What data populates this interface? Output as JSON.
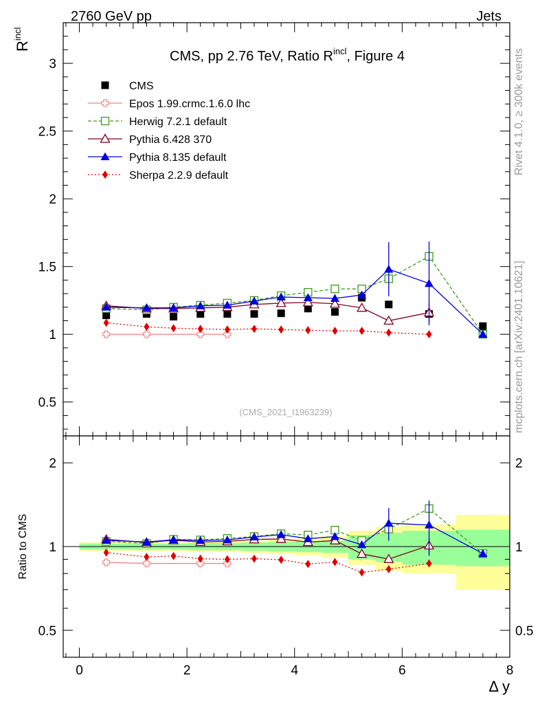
{
  "header": {
    "left": "2760 GeV pp",
    "right": "Jets"
  },
  "side_labels": {
    "rivet": "Rivet 4.1.0, ≥ 300k events",
    "mcplots": "mcplots.cern.ch [arXiv:2401.10621]"
  },
  "chart_data": {
    "type": "scatter",
    "title": "CMS, pp 2.76 TeV, Ratio R",
    "title_sup": "incl",
    "title_suffix": ", Figure 4",
    "ylabel": "R",
    "ylabel_sup": "incl",
    "ratio_ylabel": "Ratio to CMS",
    "xlabel": "Δ y",
    "analysis_id": "(CMS_2021_I1963239)",
    "xlim": [
      -0.3,
      8.0
    ],
    "ylim": [
      0.25,
      3.3
    ],
    "ratio_ylim": [
      0.4,
      2.5
    ],
    "x_ticks": [
      "0",
      "2",
      "4",
      "6",
      "8"
    ],
    "y_ticks": [
      "0.5",
      "1",
      "1.5",
      "2",
      "2.5",
      "3"
    ],
    "ratio_ticks": [
      "0.5",
      "1",
      "2"
    ],
    "bin_edges": [
      0,
      1,
      1.5,
      2,
      2.5,
      3,
      3.5,
      4,
      4.5,
      5,
      5.5,
      6,
      7,
      8
    ],
    "x": [
      0.5,
      1.25,
      1.75,
      2.25,
      2.75,
      3.25,
      3.75,
      4.25,
      4.75,
      5.25,
      5.75,
      6.5,
      7.5
    ],
    "ratio_band_stat": [
      0.025,
      0.025,
      0.025,
      0.03,
      0.03,
      0.035,
      0.04,
      0.045,
      0.05,
      0.1,
      0.12,
      0.14,
      0.15
    ],
    "ratio_band_total": [
      0.035,
      0.035,
      0.035,
      0.04,
      0.045,
      0.05,
      0.06,
      0.07,
      0.09,
      0.14,
      0.18,
      0.2,
      0.3
    ],
    "series": [
      {
        "name": "CMS",
        "color": "#000000",
        "marker": "square-filled",
        "line": "none",
        "x": [
          0.5,
          1.25,
          1.75,
          2.25,
          2.75,
          3.25,
          3.75,
          4.25,
          4.75,
          5.25,
          5.75,
          6.5,
          7.5
        ],
        "values": [
          1.14,
          1.15,
          1.13,
          1.15,
          1.15,
          1.15,
          1.155,
          1.19,
          1.165,
          1.27,
          1.22,
          1.15,
          1.06
        ],
        "err": [
          0,
          0,
          0,
          0,
          0,
          0,
          0,
          0,
          0,
          0,
          0,
          0,
          0
        ]
      },
      {
        "name": "Epos 1.99.crmc.1.6.0 lhc",
        "color": "#f08080",
        "marker": "cross-open",
        "line": "solid",
        "x": [
          0.5,
          1.25,
          2.25,
          2.75
        ],
        "values": [
          1.0,
          1.0,
          1.0,
          1.0
        ],
        "err": [
          0,
          0,
          0,
          0
        ]
      },
      {
        "name": "Herwig 7.2.1 default",
        "color": "#3d9a1e",
        "marker": "square-open",
        "line": "dashed",
        "x": [
          0.5,
          1.25,
          1.75,
          2.25,
          2.75,
          3.25,
          3.75,
          4.25,
          4.75,
          5.25,
          5.75,
          6.5,
          7.5
        ],
        "values": [
          1.19,
          1.18,
          1.2,
          1.215,
          1.23,
          1.25,
          1.285,
          1.31,
          1.335,
          1.335,
          1.41,
          1.575,
          1.0
        ],
        "err": [
          0,
          0,
          0,
          0,
          0,
          0,
          0,
          0,
          0,
          0,
          0,
          0,
          0
        ]
      },
      {
        "name": "Pythia 6.428 370",
        "color": "#800020",
        "marker": "triangle-open",
        "line": "solid",
        "x": [
          0.5,
          1.25,
          1.75,
          2.25,
          2.75,
          3.25,
          3.75,
          4.25,
          4.75,
          5.25,
          5.75,
          6.5
        ],
        "values": [
          1.21,
          1.19,
          1.19,
          1.195,
          1.2,
          1.22,
          1.23,
          1.235,
          1.225,
          1.195,
          1.1,
          1.16
        ],
        "err": [
          0,
          0,
          0,
          0,
          0,
          0,
          0,
          0,
          0,
          0,
          0.03,
          0.07
        ]
      },
      {
        "name": "Pythia 8.135 default",
        "color": "#0000e0",
        "marker": "triangle-filled",
        "line": "solid",
        "x": [
          0.5,
          1.25,
          1.75,
          2.25,
          2.75,
          3.25,
          3.75,
          4.25,
          4.75,
          5.25,
          5.75,
          6.5,
          7.5
        ],
        "values": [
          1.2,
          1.195,
          1.195,
          1.21,
          1.215,
          1.245,
          1.275,
          1.27,
          1.265,
          1.29,
          1.48,
          1.375,
          1.0
        ],
        "err": [
          0,
          0,
          0,
          0,
          0,
          0,
          0,
          0,
          0,
          0,
          0.2,
          0.31,
          0
        ]
      },
      {
        "name": "Sherpa 2.2.9 default",
        "color": "#e00000",
        "marker": "diamond-filled",
        "line": "dotted",
        "x": [
          0.5,
          1.25,
          1.75,
          2.25,
          2.75,
          3.25,
          3.75,
          4.25,
          4.75,
          5.25,
          5.75,
          6.5
        ],
        "values": [
          1.085,
          1.055,
          1.045,
          1.04,
          1.035,
          1.04,
          1.035,
          1.03,
          1.025,
          1.025,
          1.012,
          1.0
        ],
        "err": [
          0,
          0,
          0,
          0,
          0,
          0,
          0,
          0,
          0,
          0,
          0,
          0
        ]
      }
    ]
  }
}
